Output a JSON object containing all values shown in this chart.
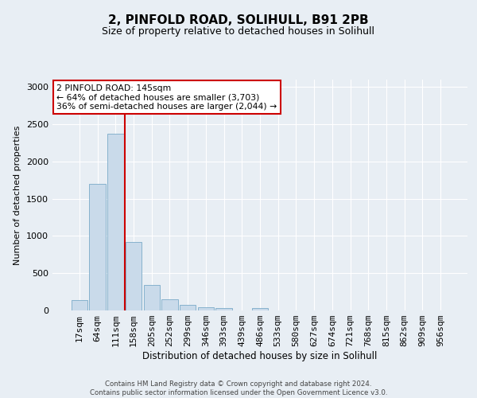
{
  "title1": "2, PINFOLD ROAD, SOLIHULL, B91 2PB",
  "title2": "Size of property relative to detached houses in Solihull",
  "xlabel": "Distribution of detached houses by size in Solihull",
  "ylabel": "Number of detached properties",
  "categories": [
    "17sqm",
    "64sqm",
    "111sqm",
    "158sqm",
    "205sqm",
    "252sqm",
    "299sqm",
    "346sqm",
    "393sqm",
    "439sqm",
    "486sqm",
    "533sqm",
    "580sqm",
    "627sqm",
    "674sqm",
    "721sqm",
    "768sqm",
    "815sqm",
    "862sqm",
    "909sqm",
    "956sqm"
  ],
  "values": [
    140,
    1700,
    2370,
    920,
    340,
    155,
    80,
    48,
    32,
    0,
    28,
    0,
    0,
    0,
    0,
    0,
    0,
    0,
    0,
    0,
    0
  ],
  "bar_color": "#c9daea",
  "bar_edge_color": "#7aaac8",
  "vline_color": "#cc0000",
  "annotation_text": "2 PINFOLD ROAD: 145sqm\n← 64% of detached houses are smaller (3,703)\n36% of semi-detached houses are larger (2,044) →",
  "annotation_box_color": "#ffffff",
  "annotation_box_edge": "#cc0000",
  "ylim": [
    0,
    3100
  ],
  "yticks": [
    0,
    500,
    1000,
    1500,
    2000,
    2500,
    3000
  ],
  "footer1": "Contains HM Land Registry data © Crown copyright and database right 2024.",
  "footer2": "Contains public sector information licensed under the Open Government Licence v3.0.",
  "bg_color": "#e8eef4",
  "plot_bg_color": "#e8eef4"
}
